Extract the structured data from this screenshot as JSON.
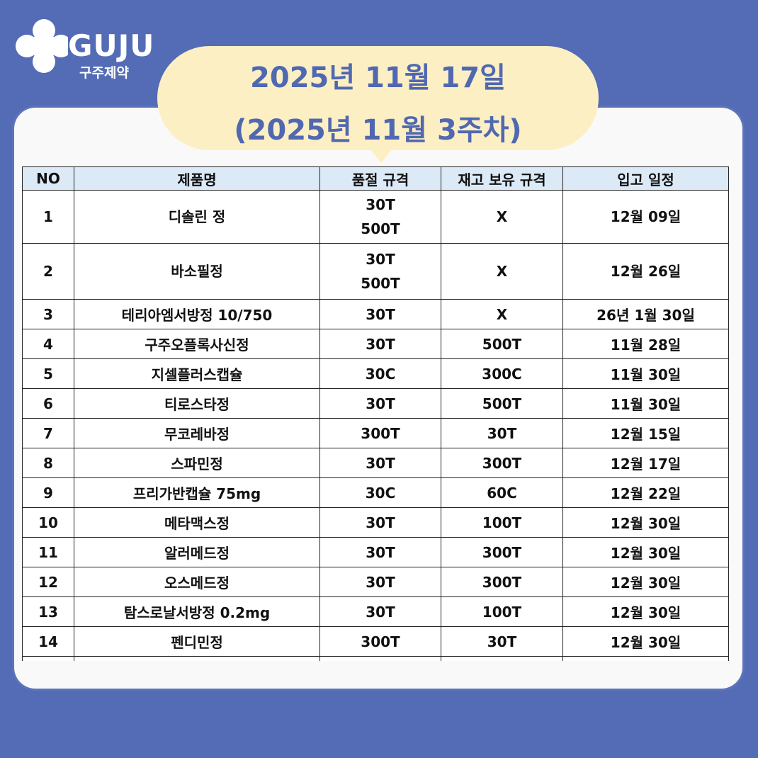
{
  "brand": {
    "name": "GUJU",
    "korean": "구주제약"
  },
  "header": {
    "line1": "2025년 11월 17일",
    "line2": "(2025년 11월 3주차)"
  },
  "colors": {
    "background": "#546cb5",
    "bubble": "#fdefc4",
    "title": "#5068b0",
    "header_row": "#dce9f6"
  },
  "table": {
    "columns": [
      "NO",
      "제품명",
      "품절 규격",
      "재고 보유 규격",
      "입고 일정"
    ],
    "rows": [
      {
        "no": "1",
        "name": "디솔린 정",
        "out": [
          "30T",
          "500T"
        ],
        "stock": "X",
        "date": "12월 09일"
      },
      {
        "no": "2",
        "name": "바소필정",
        "out": [
          "30T",
          "500T"
        ],
        "stock": "X",
        "date": "12월 26일"
      },
      {
        "no": "3",
        "name": "테리아엠서방정 10/750",
        "out": [
          "30T"
        ],
        "stock": "X",
        "date": "26년 1월 30일"
      },
      {
        "no": "4",
        "name": "구주오플록사신정",
        "out": [
          "30T"
        ],
        "stock": "500T",
        "date": "11월 28일"
      },
      {
        "no": "5",
        "name": "지셀플러스캡슐",
        "out": [
          "30C"
        ],
        "stock": "300C",
        "date": "11월 30일"
      },
      {
        "no": "6",
        "name": "티로스타정",
        "out": [
          "30T"
        ],
        "stock": "500T",
        "date": "11월 30일"
      },
      {
        "no": "7",
        "name": "무코레바정",
        "out": [
          "300T"
        ],
        "stock": "30T",
        "date": "12월 15일"
      },
      {
        "no": "8",
        "name": "스파민정",
        "out": [
          "30T"
        ],
        "stock": "300T",
        "date": "12월 17일"
      },
      {
        "no": "9",
        "name": "프리가반캡슐 75mg",
        "out": [
          "30C"
        ],
        "stock": "60C",
        "date": "12월 22일"
      },
      {
        "no": "10",
        "name": "메타맥스정",
        "out": [
          "30T"
        ],
        "stock": "100T",
        "date": "12월 30일"
      },
      {
        "no": "11",
        "name": "알러메드정",
        "out": [
          "30T"
        ],
        "stock": "300T",
        "date": "12월 30일"
      },
      {
        "no": "12",
        "name": "오스메드정",
        "out": [
          "30T"
        ],
        "stock": "300T",
        "date": "12월 30일"
      },
      {
        "no": "13",
        "name": "탐스로날서방정 0.2mg",
        "out": [
          "30T"
        ],
        "stock": "100T",
        "date": "12월 30일"
      },
      {
        "no": "14",
        "name": "펜디민정",
        "out": [
          "300T"
        ],
        "stock": "30T",
        "date": "12월 30일"
      }
    ]
  }
}
